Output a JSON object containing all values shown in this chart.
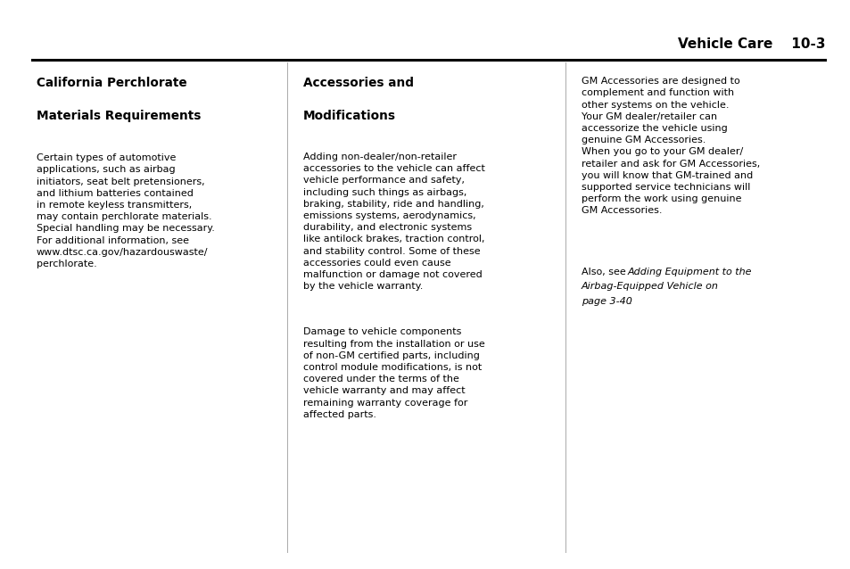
{
  "header_text": "Vehicle Care",
  "header_page": "10-3",
  "col1_title_line1": "California Perchlorate",
  "col1_title_line2": "Materials Requirements",
  "col1_body": "Certain types of automotive\napplications, such as airbag\ninitiators, seat belt pretensioners,\nand lithium batteries contained\nin remote keyless transmitters,\nmay contain perchlorate materials.\nSpecial handling may be necessary.\nFor additional information, see\nwww.dtsc.ca.gov/hazardouswaste/\nperchlorate.",
  "col2_title_line1": "Accessories and",
  "col2_title_line2": "Modifications",
  "col2_body1": "Adding non-dealer/non-retailer\naccessories to the vehicle can affect\nvehicle performance and safety,\nincluding such things as airbags,\nbraking, stability, ride and handling,\nemissions systems, aerodynamics,\ndurability, and electronic systems\nlike antilock brakes, traction control,\nand stability control. Some of these\naccessories could even cause\nmalfunction or damage not covered\nby the vehicle warranty.",
  "col2_body2": "Damage to vehicle components\nresulting from the installation or use\nof non-GM certified parts, including\ncontrol module modifications, is not\ncovered under the terms of the\nvehicle warranty and may affect\nremaining warranty coverage for\naffected parts.",
  "col3_body1": "GM Accessories are designed to\ncomplement and function with\nother systems on the vehicle.\nYour GM dealer/retailer can\naccessorize the vehicle using\ngenuine GM Accessories.\nWhen you go to your GM dealer/\nretailer and ask for GM Accessories,\nyou will know that GM-trained and\nsupported service technicians will\nperform the work using genuine\nGM Accessories.",
  "col3_also_see": "Also, see ",
  "col3_italic": "Adding Equipment to the\nAirbag-Equipped Vehicle on\npage 3-40",
  "col3_period": ".",
  "bg_color": "#ffffff",
  "text_color": "#000000"
}
